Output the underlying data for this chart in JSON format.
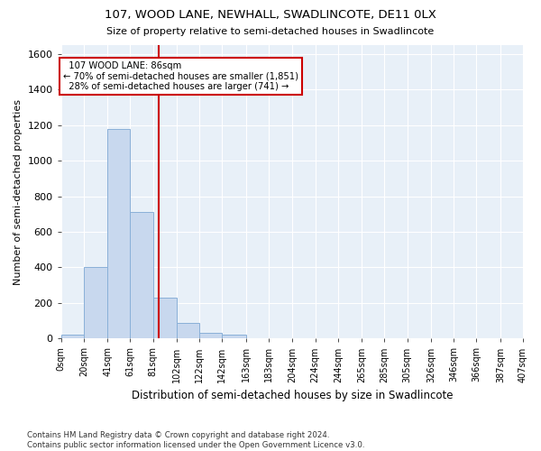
{
  "title1": "107, WOOD LANE, NEWHALL, SWADLINCOTE, DE11 0LX",
  "title2": "Size of property relative to semi-detached houses in Swadlincote",
  "xlabel": "Distribution of semi-detached houses by size in Swadlincote",
  "ylabel": "Number of semi-detached properties",
  "footnote": "Contains HM Land Registry data © Crown copyright and database right 2024.\nContains public sector information licensed under the Open Government Licence v3.0.",
  "bin_edges": [
    0,
    20,
    41,
    61,
    81,
    102,
    122,
    142,
    163,
    183,
    204,
    224,
    244,
    265,
    285,
    305,
    326,
    346,
    366,
    387,
    407
  ],
  "bar_heights": [
    20,
    400,
    1180,
    710,
    230,
    90,
    30,
    20,
    0,
    0,
    0,
    0,
    0,
    0,
    0,
    0,
    0,
    0,
    0,
    0
  ],
  "bar_color": "#c8d8ee",
  "bar_edge_color": "#8ab0d8",
  "property_size": 86,
  "property_label": "107 WOOD LANE: 86sqm",
  "pct_smaller": 70,
  "pct_larger": 28,
  "count_smaller": 1851,
  "count_larger": 741,
  "vline_color": "#cc0000",
  "box_color": "#cc0000",
  "ylim": [
    0,
    1650
  ],
  "yticks": [
    0,
    200,
    400,
    600,
    800,
    1000,
    1200,
    1400,
    1600
  ],
  "background_color": "#e8f0f8",
  "grid_color": "#ffffff",
  "tick_labels": [
    "0sqm",
    "20sqm",
    "41sqm",
    "61sqm",
    "81sqm",
    "102sqm",
    "122sqm",
    "142sqm",
    "163sqm",
    "183sqm",
    "204sqm",
    "224sqm",
    "244sqm",
    "265sqm",
    "285sqm",
    "305sqm",
    "326sqm",
    "346sqm",
    "366sqm",
    "387sqm",
    "407sqm"
  ]
}
